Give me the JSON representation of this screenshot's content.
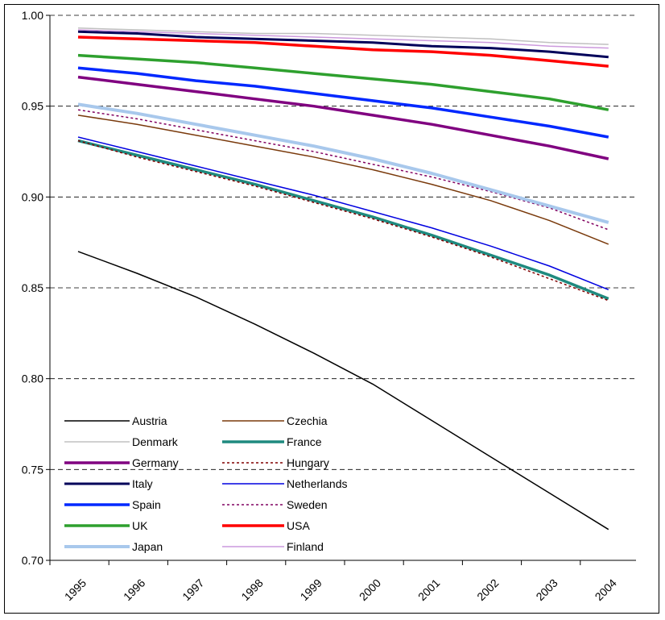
{
  "chart_data": {
    "type": "line",
    "x": [
      "1995",
      "1996",
      "1997",
      "1998",
      "1999",
      "2000",
      "2001",
      "2002",
      "2003",
      "2004"
    ],
    "ylim": [
      0.7,
      1.0
    ],
    "yticks": [
      "0.70",
      "0.75",
      "0.80",
      "0.85",
      "0.90",
      "0.95",
      "1.00"
    ],
    "grid": "horizontal-dashed",
    "legend_placement": "bottom-left",
    "series": [
      {
        "name": "Austria",
        "color": "#000000",
        "width": 1.5,
        "dash": "",
        "values": [
          0.87,
          0.858,
          0.845,
          0.83,
          0.814,
          0.797,
          0.777,
          0.757,
          0.737,
          0.717
        ]
      },
      {
        "name": "Czechia",
        "color": "#7a3a0c",
        "width": 1.5,
        "dash": "",
        "values": [
          0.945,
          0.94,
          0.934,
          0.928,
          0.922,
          0.915,
          0.907,
          0.898,
          0.887,
          0.874
        ]
      },
      {
        "name": "Denmark",
        "color": "#c0c0c0",
        "width": 1.5,
        "dash": "",
        "values": [
          0.993,
          0.992,
          0.991,
          0.99,
          0.99,
          0.989,
          0.988,
          0.987,
          0.985,
          0.984
        ]
      },
      {
        "name": "France",
        "color": "#1f8a7f",
        "width": 3.5,
        "dash": "",
        "values": [
          0.931,
          0.923,
          0.915,
          0.907,
          0.898,
          0.889,
          0.879,
          0.868,
          0.857,
          0.844
        ]
      },
      {
        "name": "Germany",
        "color": "#800080",
        "width": 3.5,
        "dash": "",
        "values": [
          0.966,
          0.962,
          0.958,
          0.954,
          0.95,
          0.945,
          0.94,
          0.934,
          0.928,
          0.921
        ]
      },
      {
        "name": "Hungary",
        "color": "#800000",
        "width": 1.5,
        "dash": "3,3",
        "values": [
          0.931,
          0.922,
          0.914,
          0.906,
          0.897,
          0.888,
          0.878,
          0.867,
          0.855,
          0.843
        ]
      },
      {
        "name": "Italy",
        "color": "#00005a",
        "width": 3,
        "dash": "",
        "values": [
          0.991,
          0.99,
          0.988,
          0.987,
          0.986,
          0.985,
          0.983,
          0.982,
          0.98,
          0.977
        ]
      },
      {
        "name": "Netherlands",
        "color": "#0000e0",
        "width": 1.5,
        "dash": "",
        "values": [
          0.933,
          0.925,
          0.917,
          0.909,
          0.901,
          0.892,
          0.883,
          0.873,
          0.862,
          0.849
        ]
      },
      {
        "name": "Spain",
        "color": "#0028ff",
        "width": 3.5,
        "dash": "",
        "values": [
          0.971,
          0.968,
          0.964,
          0.961,
          0.957,
          0.953,
          0.949,
          0.944,
          0.939,
          0.933
        ]
      },
      {
        "name": "Sweden",
        "color": "#800060",
        "width": 1.5,
        "dash": "3,3",
        "values": [
          0.948,
          0.943,
          0.937,
          0.931,
          0.925,
          0.918,
          0.911,
          0.903,
          0.894,
          0.882
        ]
      },
      {
        "name": "UK",
        "color": "#2ea02e",
        "width": 3.5,
        "dash": "",
        "values": [
          0.978,
          0.976,
          0.974,
          0.971,
          0.968,
          0.965,
          0.962,
          0.958,
          0.954,
          0.948
        ]
      },
      {
        "name": "USA",
        "color": "#ff0000",
        "width": 3.5,
        "dash": "",
        "values": [
          0.988,
          0.987,
          0.986,
          0.985,
          0.983,
          0.981,
          0.98,
          0.978,
          0.975,
          0.972
        ]
      },
      {
        "name": "Japan",
        "color": "#a8c8ec",
        "width": 4,
        "dash": "",
        "values": [
          0.951,
          0.946,
          0.94,
          0.934,
          0.928,
          0.921,
          0.913,
          0.904,
          0.895,
          0.886
        ]
      },
      {
        "name": "Finland",
        "color": "#cc99dd",
        "width": 1.5,
        "dash": "",
        "values": [
          0.992,
          0.991,
          0.99,
          0.989,
          0.988,
          0.987,
          0.986,
          0.985,
          0.983,
          0.982
        ]
      }
    ]
  }
}
